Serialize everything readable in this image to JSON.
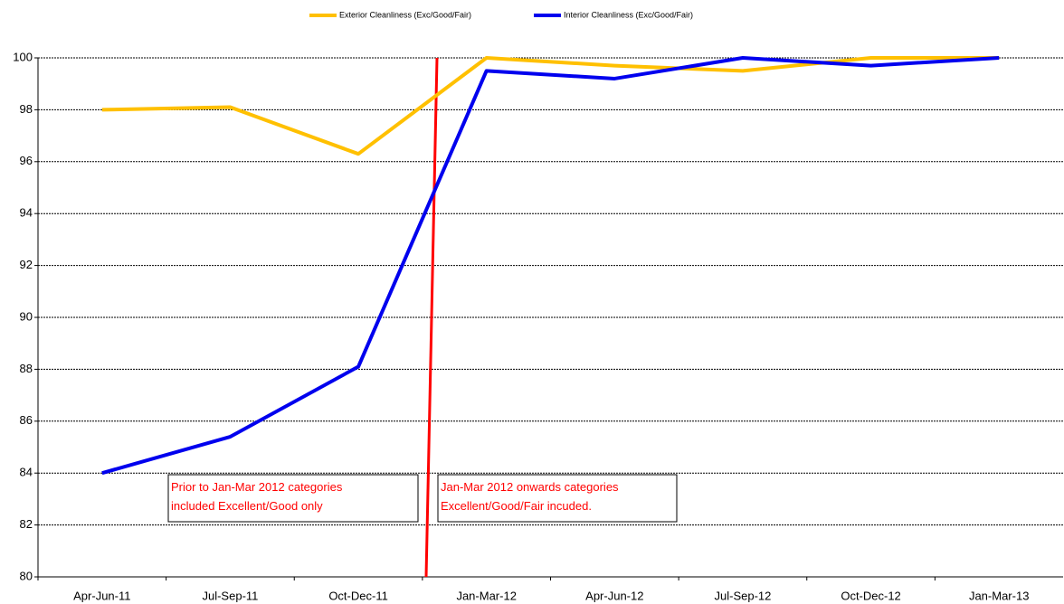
{
  "chart_data": {
    "type": "line",
    "categories": [
      "Apr-Jun-11",
      "Jul-Sep-11",
      "Oct-Dec-11",
      "Jan-Mar-12",
      "Apr-Jun-12",
      "Jul-Sep-12",
      "Oct-Dec-12",
      "Jan-Mar-13"
    ],
    "series": [
      {
        "name": "Exterior Cleanliness  (Exc/Good/Fair)",
        "color": "#ffc000",
        "values": [
          98,
          98.1,
          96.3,
          100,
          99.7,
          99.5,
          100,
          100
        ]
      },
      {
        "name": "Interior Cleanliness  (Exc/Good/Fair)",
        "color": "#0000ee",
        "values": [
          84,
          85.4,
          88.1,
          99.5,
          99.2,
          100,
          99.7,
          100
        ]
      }
    ],
    "ylim": [
      80,
      100
    ],
    "yticks": [
      80,
      82,
      84,
      86,
      88,
      90,
      92,
      94,
      96,
      98,
      100
    ],
    "grid": true,
    "legend": "top",
    "annotations": [
      {
        "lines": [
          "Prior to Jan-Mar 2012  categories",
          "included Excellent/Good only"
        ]
      },
      {
        "lines": [
          "Jan-Mar 2012 onwards categories",
          "Excellent/Good/Fair incuded."
        ]
      }
    ]
  }
}
